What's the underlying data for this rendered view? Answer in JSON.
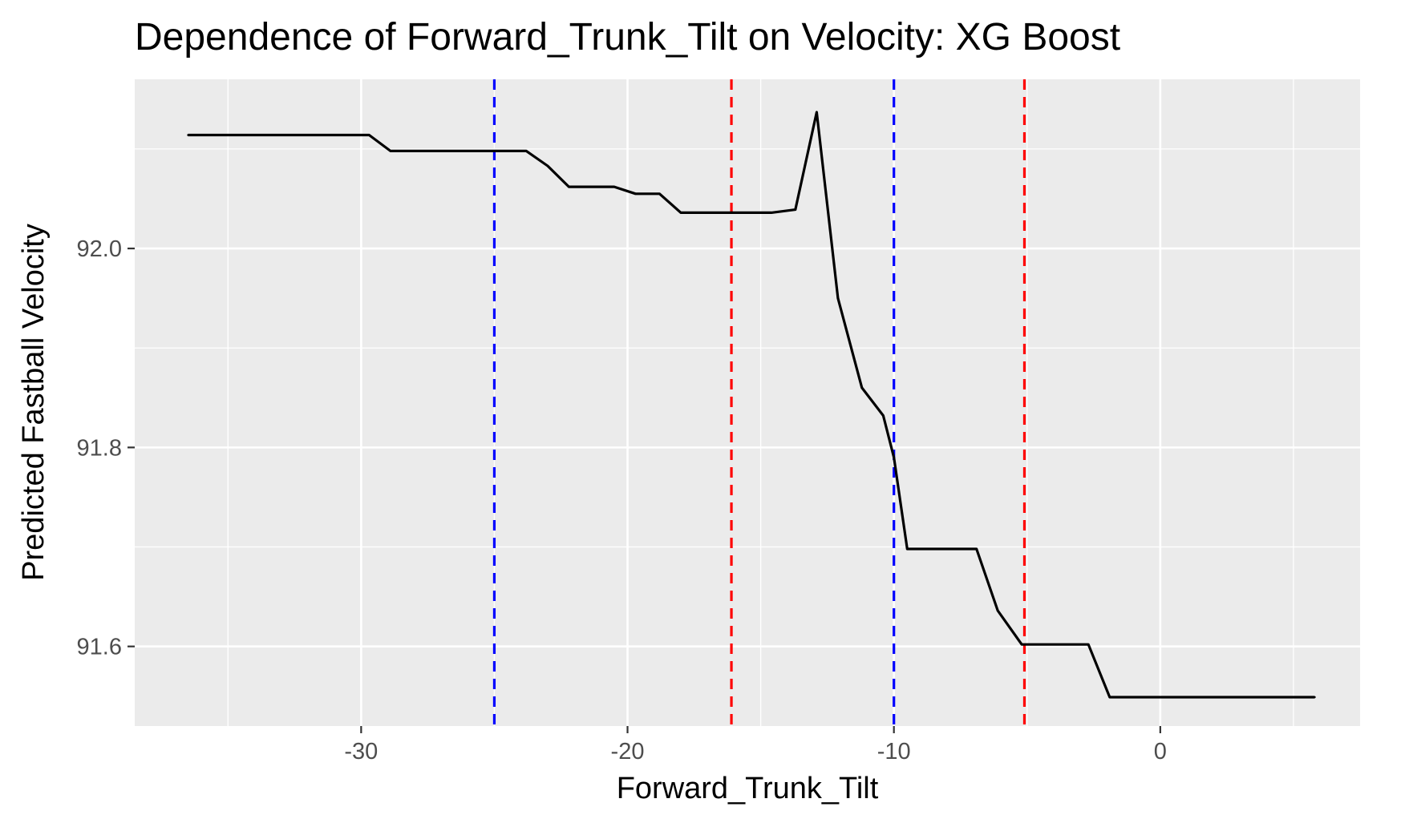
{
  "chart_data": {
    "type": "line",
    "title": "Dependence of Forward_Trunk_Tilt on Velocity: XG Boost",
    "xlabel": "Forward_Trunk_Tilt",
    "ylabel": "Predicted Fastball Velocity",
    "xlim": [
      -38.5,
      7.5
    ],
    "ylim": [
      91.52,
      92.17
    ],
    "x_ticks": [
      -30,
      -20,
      -10,
      0
    ],
    "x_tick_labels": [
      "-30",
      "-20",
      "-10",
      "0"
    ],
    "x_minor_ticks": [
      -35,
      -25,
      -15,
      -5,
      5
    ],
    "y_ticks": [
      91.6,
      91.8,
      92.0
    ],
    "y_tick_labels": [
      "91.6",
      "91.8",
      "92.0"
    ],
    "y_minor_ticks": [
      91.7,
      91.9,
      92.1
    ],
    "grid": true,
    "legend": "none",
    "colors": {
      "panel_background": "#ebebeb",
      "grid": "#ffffff",
      "line": "#000000",
      "vline_blue": "#0000ff",
      "vline_red": "#ff0000"
    },
    "series": [
      {
        "x": [
          -36.5,
          -29.7,
          -28.9,
          -23.8,
          -23.0,
          -22.2,
          -20.5,
          -19.7,
          -18.8,
          -18.0,
          -14.6,
          -13.7,
          -12.9,
          -12.1,
          -11.2,
          -10.4,
          -10.0,
          -9.5,
          -6.9,
          -6.1,
          -5.2,
          -2.7,
          -1.9,
          5.8
        ],
        "y": [
          92.114,
          92.114,
          92.098,
          92.098,
          92.083,
          92.062,
          92.062,
          92.055,
          92.055,
          92.036,
          92.036,
          92.039,
          92.137,
          91.95,
          91.86,
          91.832,
          91.79,
          91.698,
          91.698,
          91.636,
          91.602,
          91.602,
          91.549,
          91.549
        ]
      }
    ],
    "vlines": [
      {
        "x": -25,
        "color": "#0000ff",
        "style": "dashed"
      },
      {
        "x": -10,
        "color": "#0000ff",
        "style": "dashed"
      },
      {
        "x": -16.1,
        "color": "#ff0000",
        "style": "dashed"
      },
      {
        "x": -5.1,
        "color": "#ff0000",
        "style": "dashed"
      }
    ]
  }
}
